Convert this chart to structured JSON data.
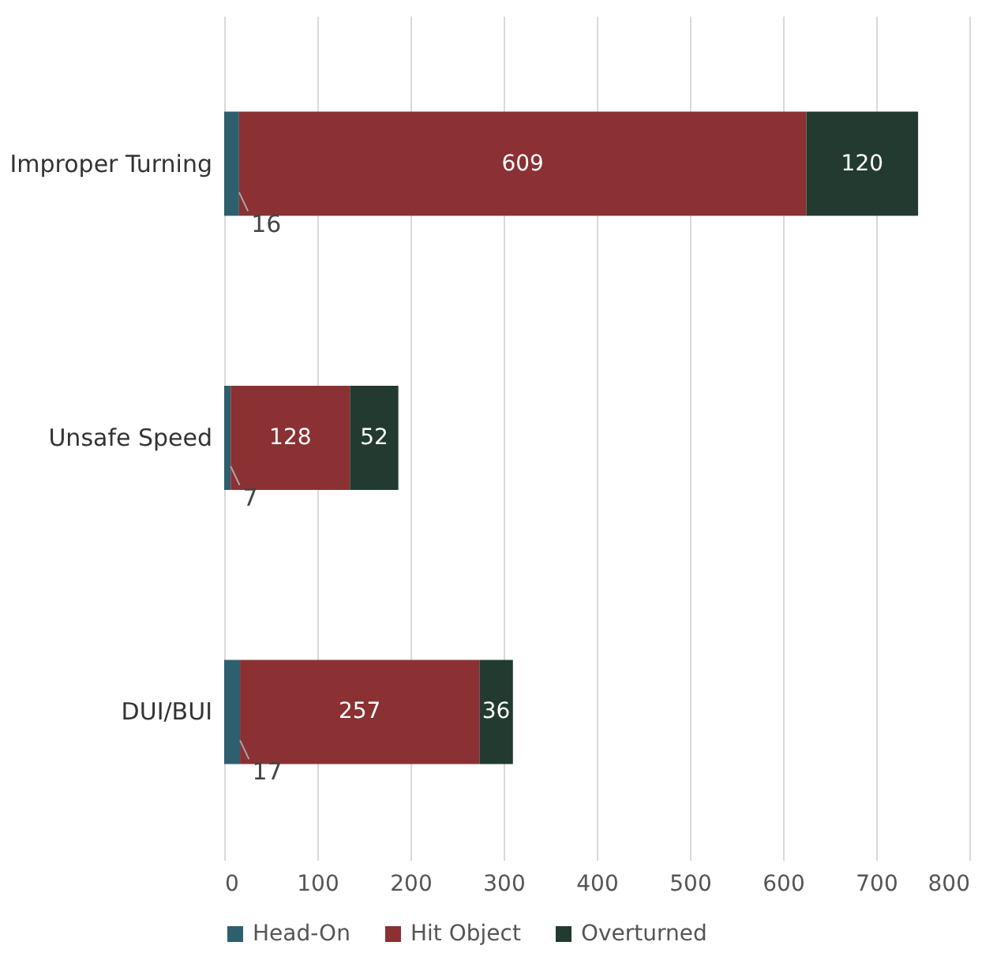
{
  "chart_data": {
    "type": "bar",
    "orientation": "horizontal",
    "stacked": true,
    "categories": [
      "Improper Turning",
      "Unsafe Speed",
      "DUI/BUI"
    ],
    "series": [
      {
        "name": "Head-On",
        "color": "#2e5f6e",
        "values": [
          16,
          7,
          17
        ]
      },
      {
        "name": "Hit Object",
        "color": "#8b3033",
        "values": [
          609,
          128,
          257
        ]
      },
      {
        "name": "Overturned",
        "color": "#223a2f",
        "values": [
          120,
          52,
          36
        ]
      }
    ],
    "xlim": [
      0,
      800
    ],
    "xticks": [
      0,
      100,
      200,
      300,
      400,
      500,
      600,
      700,
      800
    ],
    "grid": "x",
    "legend": "bottom",
    "data_labels": true
  }
}
